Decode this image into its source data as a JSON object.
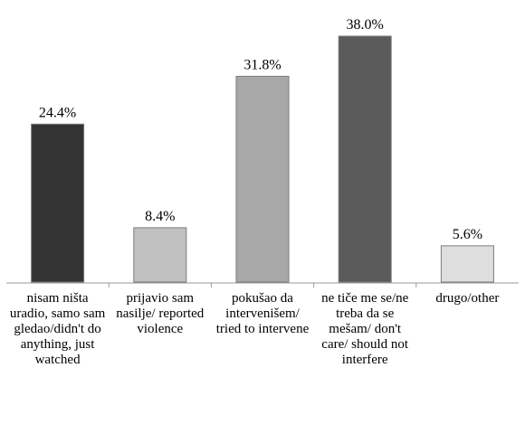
{
  "chart_data": {
    "type": "bar",
    "title": "",
    "xlabel": "",
    "ylabel": "",
    "categories": [
      "nisam ništa uradio, samo sam gledao/didn't do anything, just watched",
      "prijavio sam nasilje/ reported violence",
      "pokušao da intervenišem/ tried to intervene",
      "ne tiče me se/ne treba da se mešam/ don't care/ should not interfere",
      "drugo/other"
    ],
    "values": [
      24.4,
      8.4,
      31.8,
      38.0,
      5.6
    ],
    "data_labels": [
      "24.4%",
      "8.4%",
      "31.8%",
      "38.0%",
      "5.6%"
    ],
    "colors": [
      "#333333",
      "#c0c0c0",
      "#a8a8a8",
      "#5a5a5a",
      "#dedede"
    ],
    "ylim": [
      0,
      38.0
    ],
    "grid": false,
    "legend": "none"
  }
}
